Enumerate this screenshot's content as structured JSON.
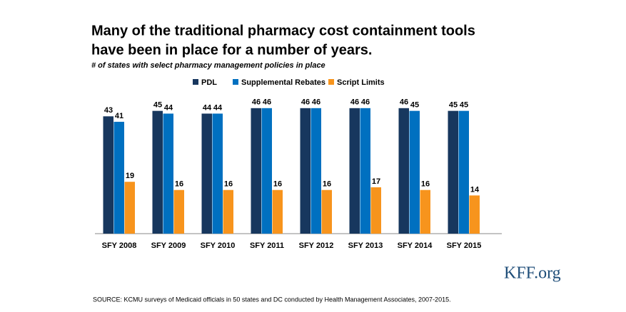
{
  "chart_data": {
    "type": "bar",
    "title": [
      "Many of the traditional pharmacy cost containment tools",
      "have been in place for a number of years."
    ],
    "subtitle": "# of states with select pharmacy management policies in place",
    "categories": [
      "SFY 2008",
      "SFY 2009",
      "SFY 2010",
      "SFY 2011",
      "SFY 2012",
      "SFY 2013",
      "SFY 2014",
      "SFY 2015"
    ],
    "series": [
      {
        "name": "PDL",
        "color": "#17375e",
        "values": [
          43,
          45,
          44,
          46,
          46,
          46,
          46,
          45
        ]
      },
      {
        "name": "Supplemental Rebates",
        "color": "#0070c0",
        "values": [
          41,
          44,
          44,
          46,
          46,
          46,
          45,
          45
        ]
      },
      {
        "name": "Script Limits",
        "color": "#f7941d",
        "values": [
          19,
          16,
          16,
          16,
          16,
          17,
          16,
          14
        ]
      }
    ],
    "source": "SOURCE: KCMU surveys of Medicaid officials in 50 states and DC conducted by Health Management Associates, 2007-2015.",
    "logo": "KFF.org"
  }
}
